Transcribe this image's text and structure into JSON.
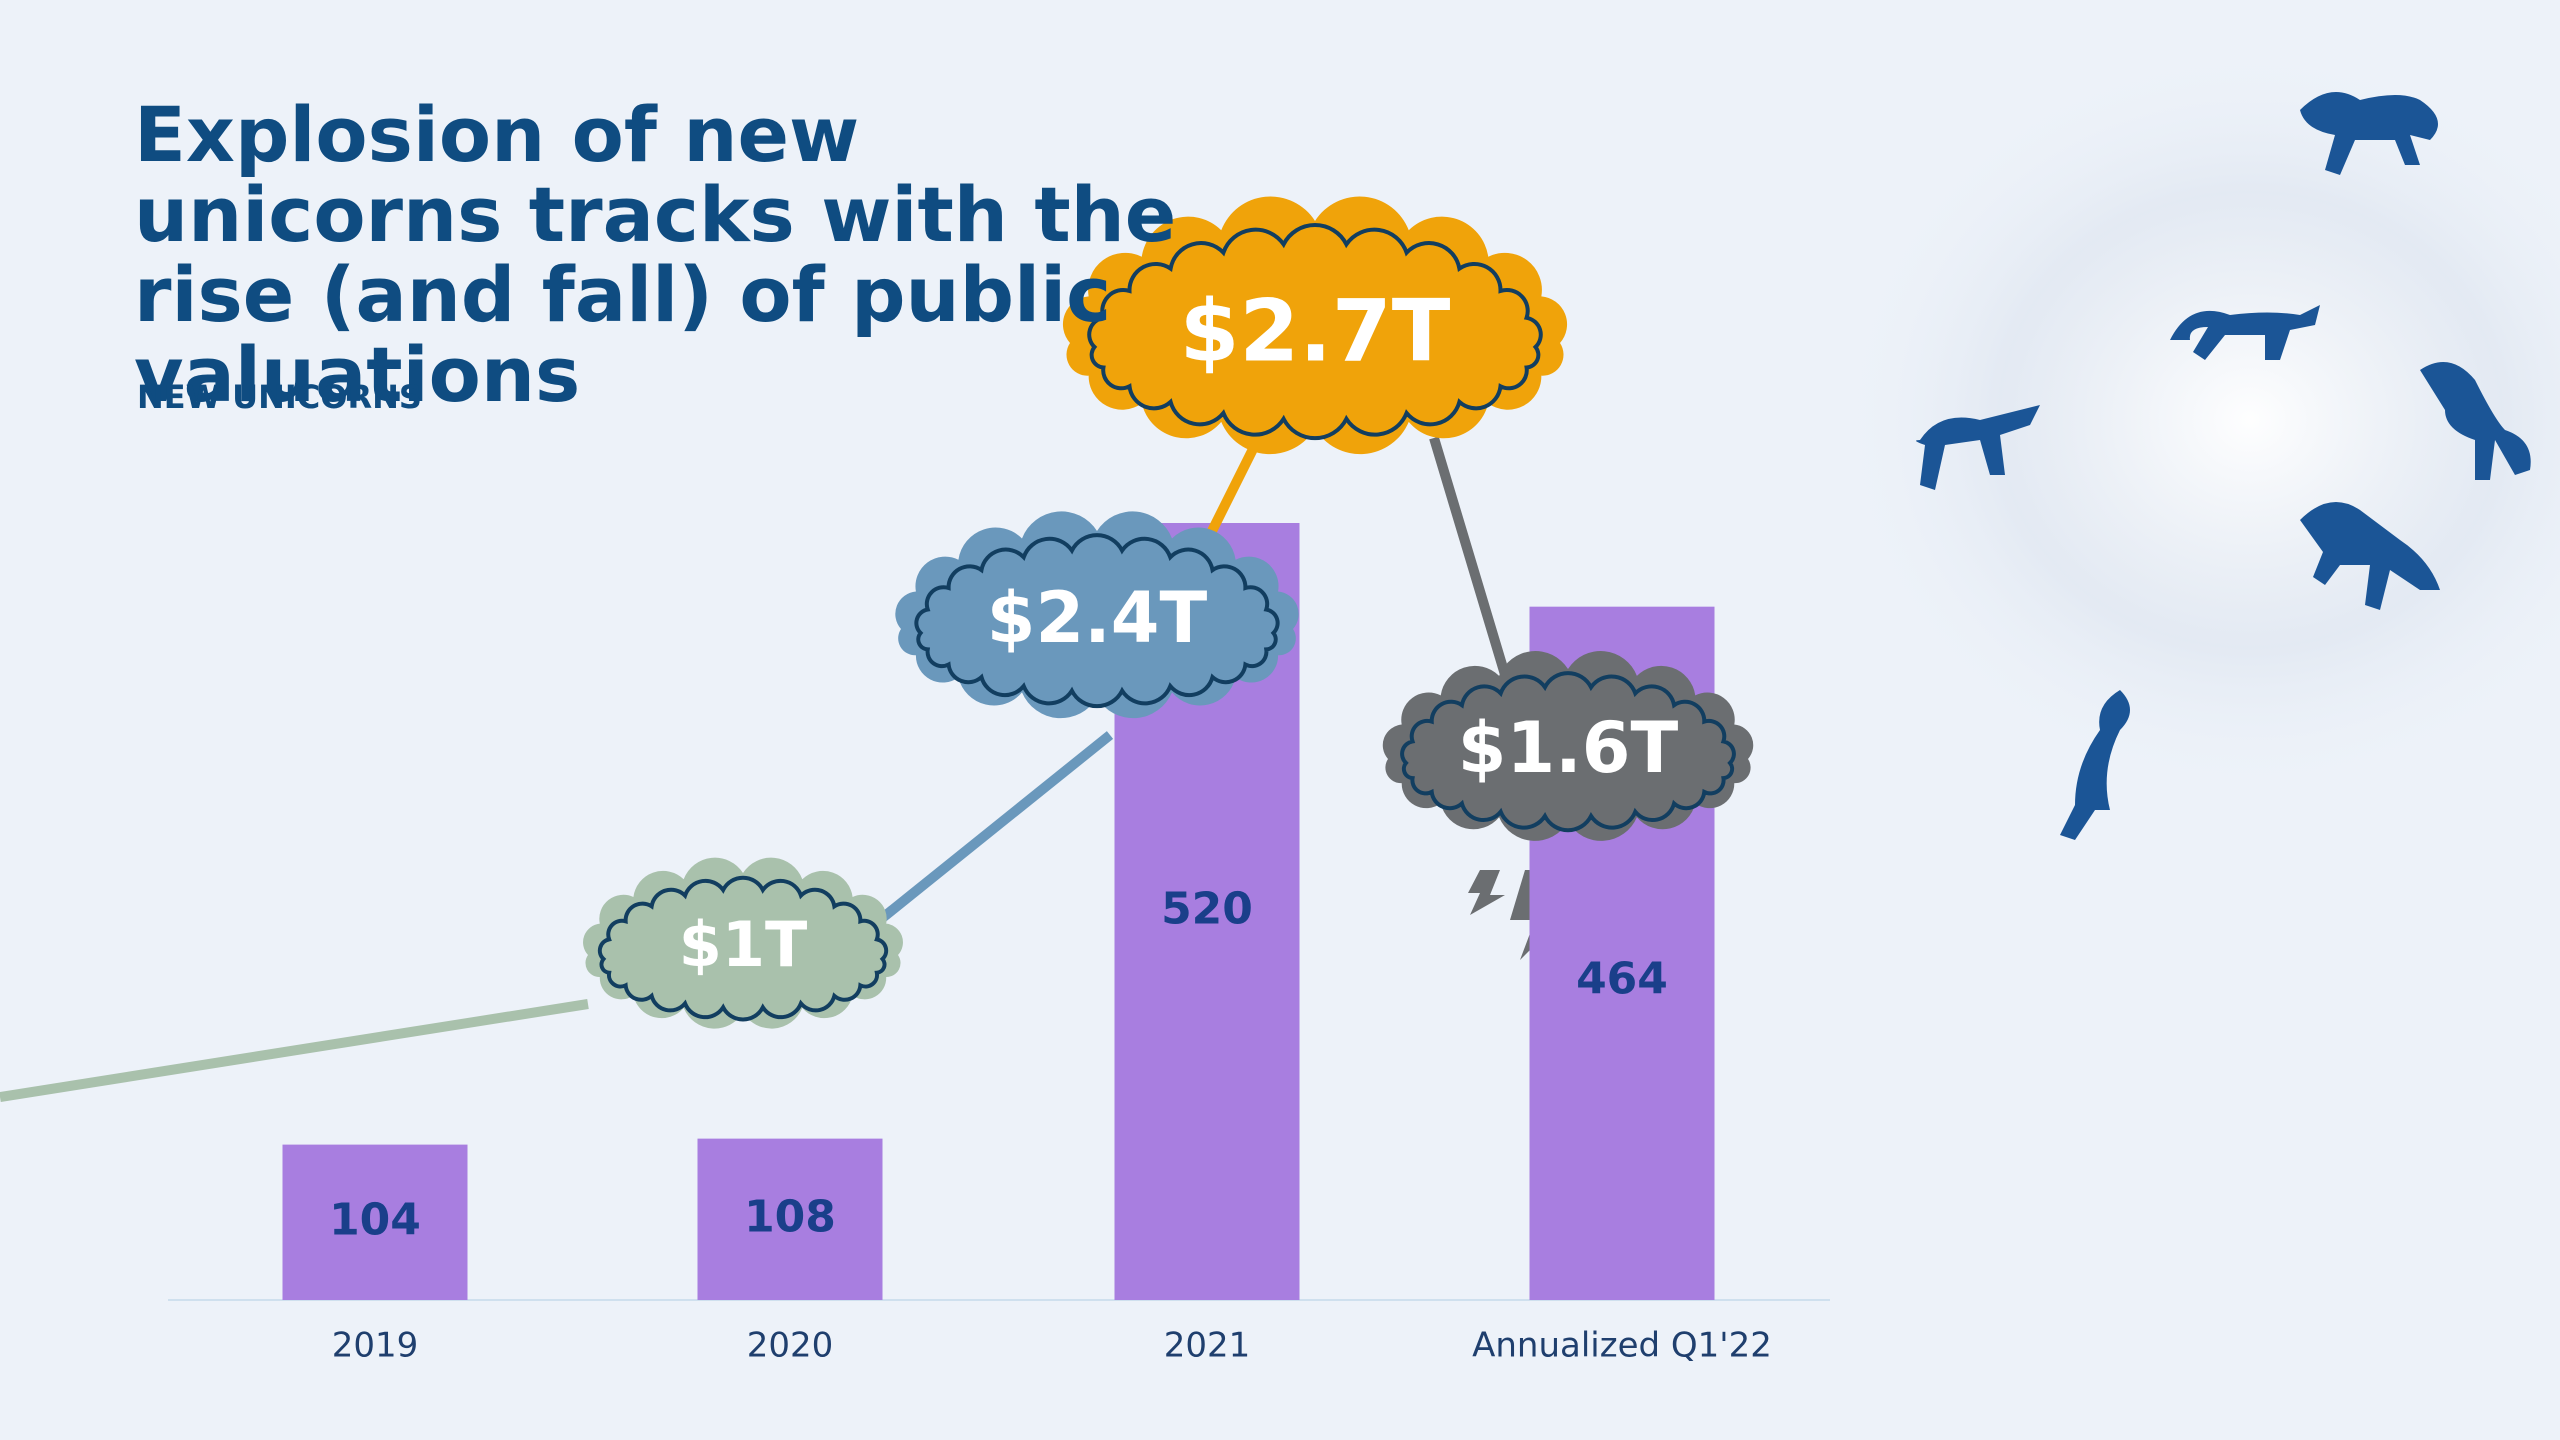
{
  "chart_data": {
    "type": "bar",
    "title": "Explosion of new unicorns tracks with the rise (and fall) of public valuations",
    "subtitle": "NEW UNICORNS",
    "categories": [
      "2019",
      "2020",
      "2021",
      "Annualized Q1'22"
    ],
    "values": [
      104,
      108,
      520,
      464
    ],
    "color": "#a87ee0",
    "ylim": [
      0,
      520
    ],
    "valuations": {
      "values": [
        1,
        2.4,
        2.7,
        1.6
      ],
      "value_labels": [
        "$1T",
        "$2.4T",
        "$2.7T",
        "$1.6T"
      ],
      "colors": [
        "#a9c1ac",
        "#6a98bc",
        "#f0a30a",
        "#6b6e71"
      ]
    }
  }
}
